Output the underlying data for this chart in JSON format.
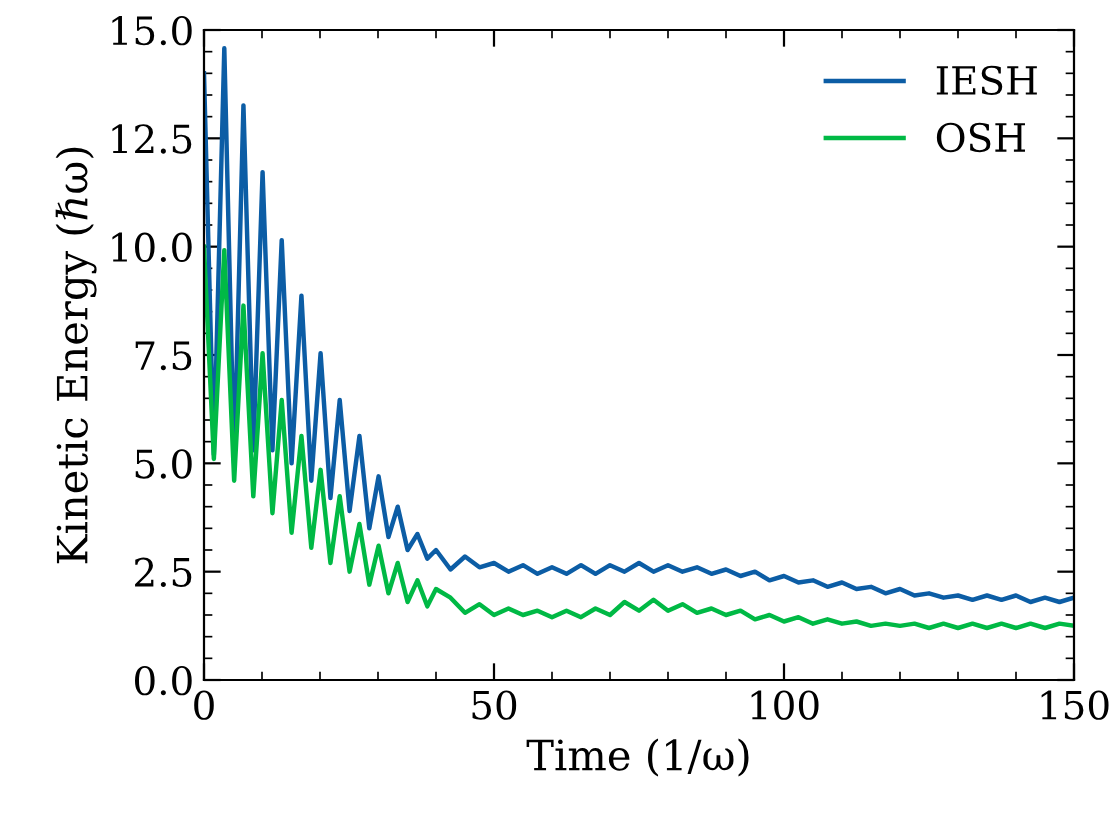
{
  "chart_data": {
    "type": "line",
    "xlabel": "Time (1/ω)",
    "ylabel": "Kinetic Energy (ℏω)",
    "x": [
      0,
      1.7,
      3.5,
      5.2,
      6.8,
      8.5,
      10.1,
      11.8,
      13.4,
      15.1,
      16.8,
      18.5,
      20.1,
      21.8,
      23.4,
      25.1,
      26.8,
      28.5,
      30.1,
      31.8,
      33.4,
      35.1,
      36.8,
      38.5,
      40,
      42.5,
      45,
      47.5,
      50,
      52.5,
      55,
      57.5,
      60,
      62.5,
      65,
      67.5,
      70,
      72.5,
      75,
      77.5,
      80,
      82.5,
      85,
      87.5,
      90,
      92.5,
      95,
      97.5,
      100,
      102.5,
      105,
      107.5,
      110,
      112.5,
      115,
      117.5,
      120,
      122.5,
      125,
      127.5,
      130,
      132.5,
      135,
      137.5,
      140,
      142.5,
      145,
      147.5,
      150
    ],
    "series": [
      {
        "name": "IESH",
        "color": "#0c5da5",
        "values": [
          14.0,
          5.2,
          14.58,
          5.0,
          13.26,
          5.3,
          11.72,
          5.3,
          10.15,
          5.0,
          8.87,
          4.6,
          7.54,
          4.2,
          6.46,
          3.9,
          5.63,
          3.5,
          4.7,
          3.3,
          4.0,
          3.0,
          3.37,
          2.8,
          3.0,
          2.55,
          2.85,
          2.6,
          2.7,
          2.5,
          2.65,
          2.45,
          2.6,
          2.45,
          2.65,
          2.45,
          2.65,
          2.5,
          2.7,
          2.5,
          2.65,
          2.5,
          2.6,
          2.45,
          2.55,
          2.4,
          2.5,
          2.3,
          2.4,
          2.25,
          2.3,
          2.15,
          2.25,
          2.1,
          2.15,
          2.0,
          2.1,
          1.95,
          2.0,
          1.9,
          1.95,
          1.85,
          1.95,
          1.85,
          1.95,
          1.8,
          1.9,
          1.8,
          1.9
        ]
      },
      {
        "name": "OSH",
        "color": "#00b945",
        "values": [
          10.0,
          5.1,
          9.92,
          4.6,
          8.64,
          4.24,
          7.54,
          3.85,
          6.46,
          3.4,
          5.63,
          3.05,
          4.85,
          2.7,
          4.24,
          2.5,
          3.6,
          2.2,
          3.1,
          2.0,
          2.7,
          1.8,
          2.3,
          1.7,
          2.1,
          1.9,
          1.55,
          1.75,
          1.5,
          1.65,
          1.5,
          1.6,
          1.45,
          1.6,
          1.45,
          1.65,
          1.5,
          1.8,
          1.6,
          1.85,
          1.6,
          1.75,
          1.55,
          1.65,
          1.5,
          1.6,
          1.4,
          1.5,
          1.35,
          1.45,
          1.3,
          1.4,
          1.3,
          1.35,
          1.25,
          1.3,
          1.25,
          1.3,
          1.2,
          1.3,
          1.2,
          1.3,
          1.2,
          1.3,
          1.2,
          1.3,
          1.2,
          1.3,
          1.25
        ]
      }
    ],
    "xlim": [
      0,
      150
    ],
    "xticks": [
      0,
      50,
      100,
      150
    ],
    "ylim": [
      0,
      15
    ],
    "yticks": [
      {
        "value": 0,
        "label": "0.0"
      },
      {
        "value": 2.5,
        "label": "2.5"
      },
      {
        "value": 5,
        "label": "5.0"
      },
      {
        "value": 7.5,
        "label": "7.5"
      },
      {
        "value": 10,
        "label": "10.0"
      },
      {
        "value": 12.5,
        "label": "12.5"
      },
      {
        "value": 15,
        "label": "15.0"
      }
    ],
    "grid": false,
    "legend": "top right",
    "marker": "none",
    "line_style": "solid"
  }
}
